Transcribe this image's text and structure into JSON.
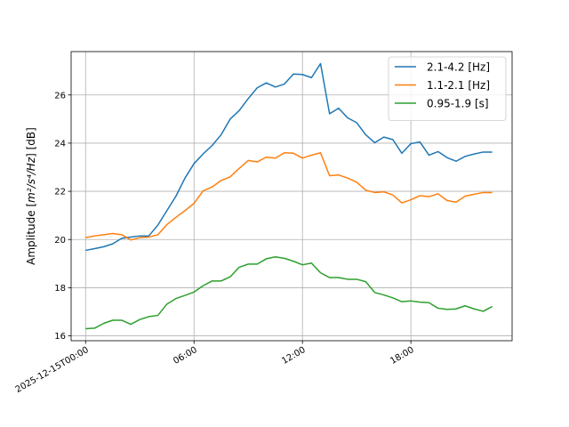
{
  "chart_data": {
    "type": "line",
    "title": "",
    "xlabel": "",
    "ylabel_prefix": "Amplitude [",
    "ylabel_math": "m²/s⁴/Hz",
    "ylabel_suffix": "] [dB]",
    "x_unit": "hours since 2025-12-15T00:00",
    "xlim": [
      -0.8,
      23.6
    ],
    "ylim": [
      15.8,
      27.8
    ],
    "x_ticks": [
      {
        "value": 0,
        "label": "2025-12-15T00:00"
      },
      {
        "value": 6,
        "label": "06:00"
      },
      {
        "value": 12,
        "label": "12:00"
      },
      {
        "value": 18,
        "label": "18:00"
      }
    ],
    "y_ticks": [
      {
        "value": 16,
        "label": "16"
      },
      {
        "value": 18,
        "label": "18"
      },
      {
        "value": 20,
        "label": "20"
      },
      {
        "value": 22,
        "label": "22"
      },
      {
        "value": 24,
        "label": "24"
      },
      {
        "value": 26,
        "label": "26"
      }
    ],
    "grid": true,
    "legend_position": "top-right",
    "x": [
      0,
      0.5,
      1,
      1.5,
      2,
      2.5,
      3,
      3.5,
      4,
      4.5,
      5,
      5.5,
      6,
      6.5,
      7,
      7.5,
      8,
      8.5,
      9,
      9.5,
      10,
      10.5,
      11,
      11.5,
      12,
      12.5,
      13,
      13.5,
      14,
      14.5,
      15,
      15.5,
      16,
      16.5,
      17,
      17.5,
      18,
      18.5,
      19,
      19.5,
      20,
      20.5,
      21,
      21.5,
      22,
      22.5
    ],
    "series": [
      {
        "name": "2.1-4.2 [Hz]",
        "color": "#1f77b4",
        "values": [
          19.55,
          19.62,
          19.7,
          19.82,
          20.05,
          20.1,
          20.15,
          20.15,
          20.6,
          21.2,
          21.8,
          22.55,
          23.15,
          23.55,
          23.9,
          24.35,
          25.0,
          25.35,
          25.85,
          26.3,
          26.5,
          26.33,
          26.45,
          26.87,
          26.85,
          26.72,
          27.3,
          25.22,
          25.45,
          25.05,
          24.85,
          24.35,
          24.02,
          24.25,
          24.15,
          23.58,
          23.98,
          24.05,
          23.5,
          23.65,
          23.4,
          23.25,
          23.45,
          23.55,
          23.63,
          23.63
        ]
      },
      {
        "name": "1.1-2.1 [Hz]",
        "color": "#ff7f0e",
        "values": [
          20.08,
          20.15,
          20.2,
          20.25,
          20.2,
          19.98,
          20.08,
          20.1,
          20.2,
          20.62,
          20.92,
          21.2,
          21.5,
          22.02,
          22.18,
          22.45,
          22.6,
          22.95,
          23.28,
          23.22,
          23.42,
          23.38,
          23.6,
          23.58,
          23.38,
          23.5,
          23.6,
          22.65,
          22.68,
          22.55,
          22.38,
          22.05,
          21.95,
          21.98,
          21.85,
          21.52,
          21.65,
          21.82,
          21.78,
          21.9,
          21.62,
          21.55,
          21.8,
          21.88,
          21.95,
          21.95
        ]
      },
      {
        "name": "0.95-1.9 [s]",
        "color": "#2ca02c",
        "values": [
          16.3,
          16.32,
          16.52,
          16.65,
          16.65,
          16.48,
          16.68,
          16.8,
          16.85,
          17.32,
          17.55,
          17.68,
          17.82,
          18.08,
          18.28,
          18.28,
          18.45,
          18.85,
          18.98,
          18.98,
          19.2,
          19.28,
          19.22,
          19.1,
          18.95,
          19.02,
          18.62,
          18.42,
          18.42,
          18.35,
          18.35,
          18.25,
          17.8,
          17.7,
          17.58,
          17.42,
          17.45,
          17.4,
          17.38,
          17.15,
          17.1,
          17.12,
          17.25,
          17.12,
          17.02,
          17.22
        ]
      }
    ]
  }
}
